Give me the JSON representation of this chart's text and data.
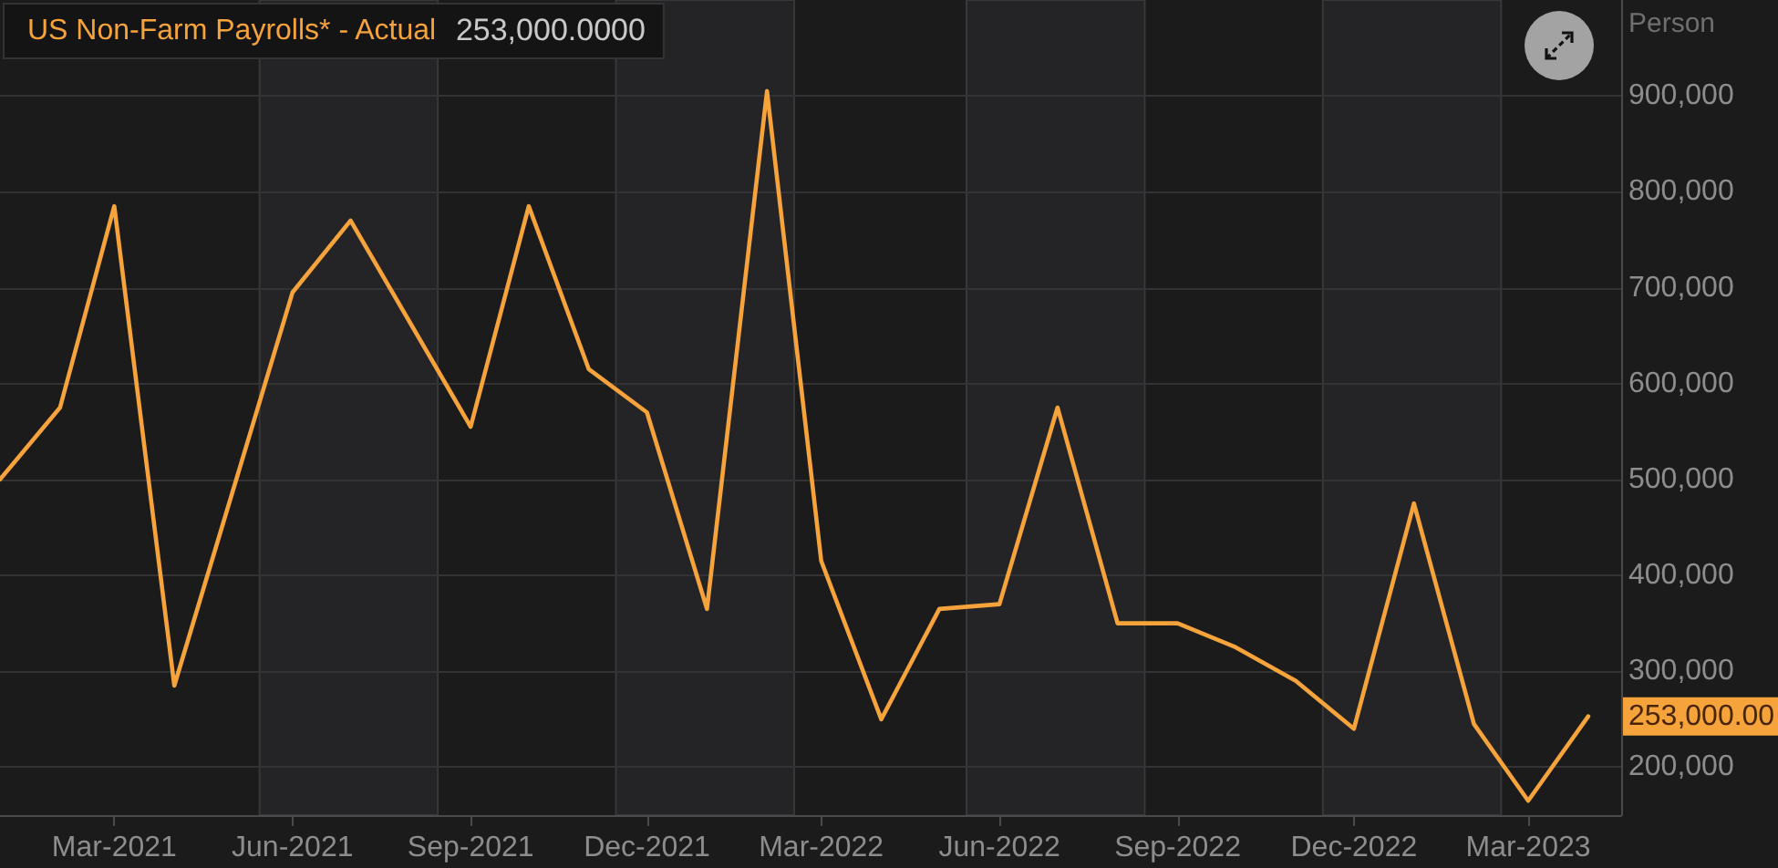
{
  "chart_data": {
    "type": "line",
    "ylabel": "Person",
    "x": [
      "2021-01",
      "2021-02",
      "2021-03",
      "2021-04",
      "2021-06",
      "2021-07",
      "2021-09",
      "2021-10",
      "2021-11",
      "2021-12",
      "2022-01",
      "2022-02",
      "2022-03",
      "2022-04",
      "2022-05",
      "2022-06",
      "2022-07",
      "2022-08",
      "2022-09",
      "2022-10",
      "2022-11",
      "2022-12",
      "2023-01",
      "2023-02",
      "2023-03",
      "2023-04"
    ],
    "series": [
      {
        "name": "US Non-Farm Payrolls* - Actual",
        "color": "#f5a33a",
        "values": [
          500000,
          575000,
          785000,
          285000,
          695000,
          770000,
          555000,
          785000,
          615000,
          570000,
          365000,
          905000,
          415000,
          250000,
          365000,
          370000,
          575000,
          350000,
          350000,
          325000,
          290000,
          240000,
          475000,
          245000,
          165000,
          253000
        ]
      }
    ],
    "xlim": [
      "2021-01-01",
      "2023-04-18"
    ],
    "xticks": [
      {
        "value": "2021-03",
        "label": "Mar-2021"
      },
      {
        "value": "2021-06",
        "label": "Jun-2021"
      },
      {
        "value": "2021-09",
        "label": "Sep-2021"
      },
      {
        "value": "2021-12",
        "label": "Dec-2021"
      },
      {
        "value": "2022-03",
        "label": "Mar-2022"
      },
      {
        "value": "2022-06",
        "label": "Jun-2022"
      },
      {
        "value": "2022-09",
        "label": "Sep-2022"
      },
      {
        "value": "2022-12",
        "label": "Dec-2022"
      },
      {
        "value": "2023-03",
        "label": "Mar-2023"
      }
    ],
    "ylim": [
      150000,
      1000000
    ],
    "yticks": [
      {
        "value": 200000,
        "label": "200,000"
      },
      {
        "value": 300000,
        "label": "300,000"
      },
      {
        "value": 400000,
        "label": "400,000"
      },
      {
        "value": 500000,
        "label": "500,000"
      },
      {
        "value": 600000,
        "label": "600,000"
      },
      {
        "value": 700000,
        "label": "700,000"
      },
      {
        "value": 800000,
        "label": "800,000"
      },
      {
        "value": 900000,
        "label": "900,000"
      }
    ],
    "grid": "y",
    "legend": "top left",
    "marker": "none",
    "bands": [
      {
        "axis": "x",
        "from": "2021-05-15",
        "to": "2021-08-15",
        "color": "#242426"
      },
      {
        "axis": "x",
        "from": "2021-11-15",
        "to": "2022-02-15",
        "color": "#242426"
      },
      {
        "axis": "x",
        "from": "2022-05-15",
        "to": "2022-08-15",
        "color": "#242426"
      },
      {
        "axis": "x",
        "from": "2022-11-15",
        "to": "2023-02-15",
        "color": "#242426"
      }
    ],
    "annotations": [
      "253,000.0000",
      "253,000.00"
    ]
  }
}
